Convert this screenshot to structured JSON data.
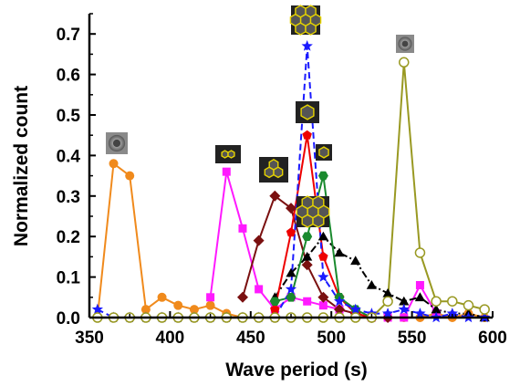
{
  "chart_data": {
    "type": "line",
    "title": "",
    "xlabel": "Wave period (s)",
    "ylabel": "Normalized count",
    "xlim": [
      350,
      600
    ],
    "ylim": [
      0,
      0.75
    ],
    "xticks": [
      350,
      400,
      450,
      500,
      550,
      600
    ],
    "yticks": [
      0.0,
      0.1,
      0.2,
      0.3,
      0.4,
      0.5,
      0.6,
      0.7
    ],
    "ytick_labels": [
      "0.0",
      "0.1",
      "0.2",
      "0.3",
      "0.4",
      "0.5",
      "0.6",
      "0.7"
    ],
    "grid": false,
    "legend": "none",
    "series": [
      {
        "color": "#f08a1c",
        "marker": "circle-filled",
        "dash": "solid",
        "x": [
          355,
          365,
          375,
          385,
          395,
          405,
          415,
          425,
          435,
          445,
          455,
          465,
          475,
          485,
          495,
          505,
          515,
          525,
          535,
          545,
          555,
          565,
          575,
          585,
          595
        ],
        "y": [
          0.0,
          0.38,
          0.35,
          0.02,
          0.05,
          0.03,
          0.02,
          0.03,
          0.01,
          0.0,
          0.0,
          0.0,
          0.0,
          0.0,
          0.0,
          0.0,
          0.0,
          0.0,
          0.0,
          0.0,
          0.0,
          0.01,
          0.0,
          0.01,
          0.0
        ]
      },
      {
        "color": "#ff1aff",
        "marker": "square-filled",
        "dash": "solid",
        "x": [
          425,
          435,
          445,
          455,
          465,
          475,
          485,
          495,
          505,
          515,
          525,
          535,
          545,
          555,
          565
        ],
        "y": [
          0.05,
          0.36,
          0.22,
          0.07,
          0.02,
          0.05,
          0.04,
          0.03,
          0.02,
          0.01,
          0.0,
          0.0,
          0.0,
          0.08,
          0.01
        ]
      },
      {
        "color": "#7a1010",
        "marker": "diamond-filled",
        "dash": "solid",
        "x": [
          445,
          455,
          465,
          475,
          485,
          495,
          505,
          515,
          525,
          535
        ],
        "y": [
          0.05,
          0.19,
          0.3,
          0.27,
          0.13,
          0.05,
          0.02,
          0.01,
          0.0,
          0.0
        ]
      },
      {
        "color": "#000000",
        "marker": "triangle-filled",
        "dash": "dashdot",
        "x": [
          465,
          475,
          485,
          495,
          505,
          515,
          525,
          535,
          545,
          555,
          565,
          575,
          585,
          595
        ],
        "y": [
          0.05,
          0.11,
          0.15,
          0.2,
          0.16,
          0.14,
          0.08,
          0.06,
          0.04,
          0.05,
          0.02,
          0.01,
          0.01,
          0.0
        ]
      },
      {
        "color": "#ee0000",
        "marker": "pentagon-filled",
        "dash": "solid",
        "x": [
          465,
          475,
          485,
          495,
          505,
          515,
          525
        ],
        "y": [
          0.02,
          0.21,
          0.45,
          0.15,
          0.05,
          0.01,
          0.0
        ]
      },
      {
        "color": "#1a8a2e",
        "marker": "hexagon-filled",
        "dash": "solid",
        "x": [
          465,
          475,
          485,
          495,
          505,
          515,
          525
        ],
        "y": [
          0.04,
          0.05,
          0.2,
          0.35,
          0.05,
          0.02,
          0.0
        ]
      },
      {
        "color": "#1a1aff",
        "marker": "star-filled",
        "dash": "dashed",
        "x": [
          355,
          365,
          375,
          385,
          395,
          405,
          415,
          425,
          435,
          445,
          455,
          465,
          475,
          485,
          495,
          505,
          515,
          525,
          535,
          545,
          555,
          565,
          575,
          585,
          595
        ],
        "y": [
          0.02,
          0.0,
          0.0,
          0.0,
          0.0,
          0.0,
          0.0,
          0.0,
          0.0,
          0.0,
          0.0,
          0.0,
          0.07,
          0.67,
          0.1,
          0.04,
          0.02,
          0.01,
          0.01,
          0.02,
          0.01,
          0.0,
          0.01,
          0.0,
          0.0
        ]
      },
      {
        "color": "#999922",
        "marker": "circle-open",
        "dash": "solid",
        "x": [
          355,
          365,
          375,
          385,
          395,
          405,
          415,
          425,
          435,
          445,
          455,
          465,
          475,
          485,
          495,
          505,
          515,
          525,
          535,
          545,
          555,
          565,
          575,
          585,
          595
        ],
        "y": [
          0.0,
          0.0,
          0.0,
          0.0,
          0.0,
          0.0,
          0.0,
          0.0,
          0.0,
          0.0,
          0.0,
          0.0,
          0.0,
          0.0,
          0.0,
          0.0,
          0.0,
          0.0,
          0.04,
          0.63,
          0.16,
          0.04,
          0.04,
          0.03,
          0.02
        ]
      }
    ]
  }
}
